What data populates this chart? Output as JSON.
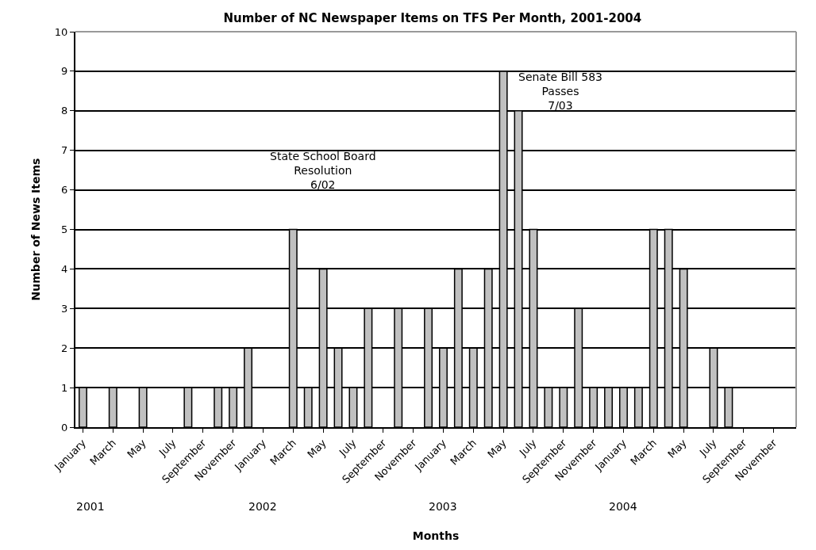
{
  "chart_data": {
    "type": "bar",
    "title": "Number of NC Newspaper Items on TFS Per Month, 2001-2004",
    "xlabel": "Months",
    "ylabel": "Number of News Items",
    "categories": [
      "January",
      null,
      "March",
      null,
      "May",
      null,
      "July",
      null,
      "September",
      null,
      "November",
      null,
      "January",
      null,
      "March",
      null,
      "May",
      null,
      "July",
      null,
      "September",
      null,
      "November",
      null,
      "January",
      null,
      "March",
      null,
      "May",
      null,
      "July",
      null,
      "September",
      null,
      "November",
      null,
      "January",
      null,
      "March",
      null,
      "May",
      null,
      "July",
      null,
      "September",
      null,
      "November",
      null
    ],
    "series": [
      {
        "color": "#c0c0c0",
        "values": [
          1,
          0,
          1,
          0,
          1,
          0,
          0,
          1,
          0,
          1,
          1,
          2,
          0,
          0,
          5,
          1,
          4,
          2,
          1,
          3,
          0,
          3,
          0,
          3,
          2,
          4,
          2,
          4,
          9,
          8,
          5,
          1,
          1,
          3,
          1,
          1,
          1,
          1,
          5,
          5,
          4,
          0,
          2,
          1,
          0,
          0,
          0,
          0
        ]
      }
    ],
    "ylim": [
      0,
      10
    ],
    "yticks": [
      0,
      1,
      2,
      3,
      4,
      5,
      6,
      7,
      8,
      9,
      10
    ],
    "grid": "y",
    "annotations": [
      "State School Board\nResolution\n6/02",
      "Senate Bill 583\nPasses\n7/03",
      "2001",
      "2002",
      "2003",
      "2004"
    ]
  }
}
